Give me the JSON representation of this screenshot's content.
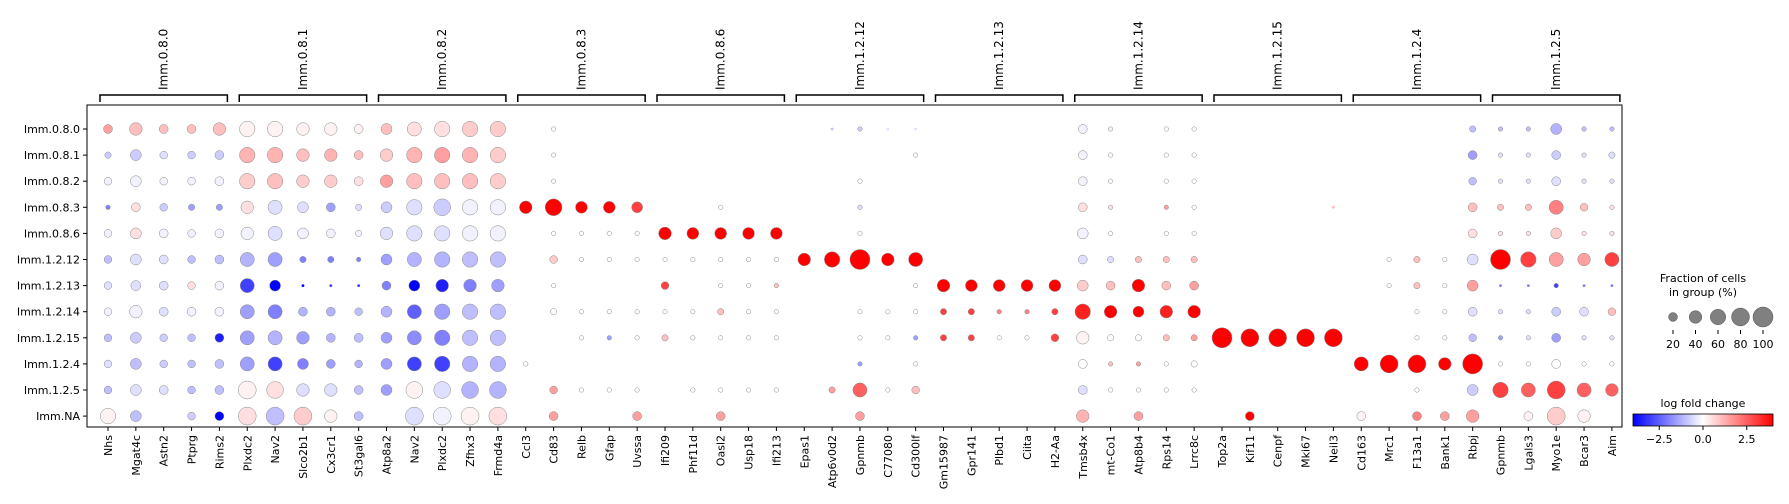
{
  "chart_data": {
    "type": "dotplot",
    "title": "",
    "rows": [
      "Imm.0.8.0",
      "Imm.0.8.1",
      "Imm.0.8.2",
      "Imm.0.8.3",
      "Imm.0.8.6",
      "Imm.1.2.12",
      "Imm.1.2.13",
      "Imm.1.2.14",
      "Imm.1.2.15",
      "Imm.1.2.4",
      "Imm.1.2.5",
      "Imm.NA"
    ],
    "groups": [
      {
        "name": "Imm.0.8.0",
        "genes": [
          "Nhs",
          "Mgat4c",
          "Astn2",
          "Ptprg",
          "Rims2"
        ]
      },
      {
        "name": "Imm.0.8.1",
        "genes": [
          "Plxdc2",
          "Nav2",
          "Slco2b1",
          "Cx3cr1",
          "St3gal6"
        ]
      },
      {
        "name": "Imm.0.8.2",
        "genes": [
          "Atp8a2",
          "Nav2",
          "Plxdc2",
          "Zfhx3",
          "Frmd4a"
        ]
      },
      {
        "name": "Imm.0.8.3",
        "genes": [
          "Ccl3",
          "Cd83",
          "Relb",
          "Gfap",
          "Uvssa"
        ]
      },
      {
        "name": "Imm.0.8.6",
        "genes": [
          "Ifi209",
          "Phf11d",
          "Oasl2",
          "Usp18",
          "Ifi213"
        ]
      },
      {
        "name": "Imm.1.2.12",
        "genes": [
          "Epas1",
          "Atp6v0d2",
          "Gpnmb",
          "C77080",
          "Cd300lf"
        ]
      },
      {
        "name": "Imm.1.2.13",
        "genes": [
          "Gm15987",
          "Gpr141",
          "Plbd1",
          "Ciita",
          "H2-Aa"
        ]
      },
      {
        "name": "Imm.1.2.14",
        "genes": [
          "Tmsb4x",
          "mt-Co1",
          "Atp8b4",
          "Rps14",
          "Lrrc8c"
        ]
      },
      {
        "name": "Imm.1.2.15",
        "genes": [
          "Top2a",
          "Kif11",
          "Cenpf",
          "Mki67",
          "Neil3"
        ]
      },
      {
        "name": "Imm.1.2.4",
        "genes": [
          "Cd163",
          "Mrc1",
          "F13a1",
          "Bank1",
          "Rbpj"
        ]
      },
      {
        "name": "Imm.1.2.5",
        "genes": [
          "Gpnmb",
          "Lgals3",
          "Myo1e",
          "Bcar3",
          "Aim"
        ]
      }
    ],
    "values_note_fraction_scale": "fraction of cells in group (%) per dot (size); log fold change per dot (color)",
    "fraction": [
      [
        20,
        40,
        20,
        20,
        40,
        60,
        60,
        40,
        40,
        20,
        30,
        50,
        60,
        60,
        60,
        2,
        5,
        2,
        2,
        2,
        2,
        2,
        2,
        2,
        2,
        2,
        2,
        5,
        2,
        2,
        0,
        0,
        0,
        0,
        0,
        20,
        5,
        2,
        5,
        5,
        0,
        0,
        0,
        0,
        0,
        0,
        2,
        0,
        2,
        10,
        5,
        5,
        30,
        5,
        5
      ],
      [
        10,
        30,
        15,
        15,
        20,
        60,
        60,
        40,
        40,
        20,
        40,
        60,
        60,
        60,
        60,
        2,
        5,
        2,
        2,
        2,
        2,
        2,
        2,
        2,
        2,
        2,
        2,
        2,
        2,
        5,
        0,
        0,
        0,
        0,
        0,
        20,
        5,
        2,
        5,
        5,
        0,
        0,
        0,
        0,
        0,
        0,
        2,
        2,
        2,
        20,
        5,
        5,
        20,
        5,
        10
      ],
      [
        15,
        30,
        15,
        15,
        20,
        60,
        60,
        40,
        40,
        20,
        40,
        60,
        60,
        60,
        60,
        2,
        5,
        2,
        2,
        2,
        2,
        2,
        2,
        2,
        2,
        2,
        2,
        5,
        2,
        2,
        0,
        0,
        0,
        0,
        0,
        20,
        5,
        2,
        5,
        5,
        0,
        0,
        0,
        0,
        0,
        0,
        2,
        2,
        2,
        15,
        5,
        5,
        20,
        5,
        5
      ],
      [
        5,
        20,
        15,
        10,
        10,
        40,
        50,
        30,
        20,
        10,
        30,
        60,
        70,
        60,
        60,
        40,
        70,
        35,
        35,
        30,
        2,
        2,
        5,
        2,
        2,
        2,
        2,
        5,
        2,
        2,
        2,
        2,
        2,
        2,
        0,
        20,
        5,
        2,
        5,
        5,
        0,
        0,
        0,
        2,
        2,
        0,
        0,
        0,
        0,
        20,
        10,
        10,
        50,
        15,
        5
      ],
      [
        15,
        30,
        20,
        15,
        20,
        40,
        50,
        30,
        20,
        10,
        40,
        60,
        60,
        60,
        60,
        2,
        5,
        5,
        5,
        5,
        40,
        35,
        35,
        35,
        35,
        2,
        2,
        5,
        2,
        2,
        2,
        2,
        0,
        0,
        0,
        30,
        5,
        2,
        5,
        5,
        0,
        0,
        0,
        0,
        0,
        0,
        2,
        2,
        2,
        20,
        5,
        5,
        30,
        5,
        5
      ],
      [
        15,
        30,
        20,
        15,
        20,
        50,
        50,
        10,
        10,
        5,
        30,
        50,
        60,
        60,
        60,
        2,
        15,
        5,
        5,
        5,
        5,
        5,
        5,
        5,
        5,
        40,
        60,
        100,
        40,
        50,
        0,
        0,
        0,
        0,
        0,
        20,
        10,
        10,
        10,
        10,
        0,
        0,
        0,
        0,
        0,
        0,
        5,
        10,
        5,
        30,
        100,
        60,
        50,
        40,
        50
      ],
      [
        15,
        25,
        20,
        15,
        20,
        50,
        30,
        2,
        2,
        2,
        20,
        30,
        40,
        40,
        40,
        2,
        5,
        2,
        2,
        2,
        15,
        2,
        5,
        5,
        5,
        2,
        2,
        2,
        2,
        5,
        40,
        35,
        35,
        35,
        35,
        30,
        20,
        40,
        20,
        20,
        2,
        0,
        0,
        0,
        0,
        0,
        5,
        10,
        5,
        30,
        2,
        2,
        5,
        2,
        2
      ],
      [
        15,
        40,
        20,
        20,
        20,
        50,
        50,
        20,
        20,
        15,
        30,
        50,
        60,
        60,
        60,
        2,
        10,
        5,
        5,
        5,
        5,
        5,
        10,
        5,
        5,
        2,
        2,
        5,
        5,
        5,
        10,
        10,
        5,
        5,
        10,
        60,
        40,
        30,
        40,
        40,
        0,
        0,
        0,
        0,
        0,
        0,
        2,
        5,
        5,
        20,
        5,
        5,
        20,
        20,
        15
      ],
      [
        15,
        30,
        15,
        15,
        20,
        50,
        50,
        40,
        20,
        20,
        30,
        50,
        60,
        60,
        60,
        0,
        0,
        5,
        5,
        5,
        10,
        5,
        5,
        5,
        5,
        2,
        2,
        5,
        5,
        5,
        10,
        10,
        5,
        5,
        15,
        40,
        10,
        10,
        10,
        10,
        100,
        80,
        80,
        80,
        80,
        0,
        2,
        5,
        5,
        15,
        5,
        5,
        20,
        5,
        5
      ],
      [
        15,
        30,
        15,
        15,
        20,
        50,
        50,
        30,
        20,
        15,
        30,
        50,
        60,
        60,
        60,
        5,
        2,
        2,
        2,
        2,
        2,
        2,
        2,
        2,
        2,
        2,
        2,
        5,
        2,
        5,
        0,
        0,
        0,
        0,
        0,
        20,
        5,
        5,
        5,
        10,
        0,
        0,
        0,
        2,
        0,
        50,
        80,
        80,
        40,
        100,
        5,
        5,
        20,
        5,
        5
      ],
      [
        15,
        30,
        20,
        15,
        20,
        80,
        70,
        40,
        40,
        20,
        30,
        70,
        70,
        70,
        70,
        2,
        15,
        5,
        5,
        5,
        2,
        5,
        5,
        5,
        5,
        2,
        10,
        50,
        5,
        15,
        2,
        2,
        2,
        0,
        0,
        20,
        5,
        5,
        5,
        5,
        0,
        0,
        0,
        0,
        0,
        0,
        2,
        5,
        2,
        30,
        60,
        50,
        80,
        50,
        40
      ],
      [
        60,
        30,
        0,
        15,
        20,
        80,
        80,
        80,
        40,
        20,
        0,
        80,
        80,
        80,
        80,
        0,
        20,
        0,
        0,
        20,
        0,
        0,
        20,
        0,
        0,
        0,
        0,
        20,
        0,
        0,
        0,
        0,
        0,
        0,
        0,
        40,
        0,
        20,
        0,
        0,
        0,
        20,
        0,
        0,
        0,
        20,
        0,
        20,
        20,
        40,
        0,
        20,
        80,
        40,
        0
      ]
    ],
    "logfc": [
      [
        1.5,
        1.0,
        1.0,
        1.0,
        1.0,
        0.2,
        0.2,
        0.2,
        0.2,
        0.2,
        1.0,
        0.5,
        0.5,
        0.8,
        0.8,
        0,
        0,
        0,
        0,
        0,
        0,
        0,
        0,
        0,
        0,
        0,
        -1.0,
        -0.8,
        -0.5,
        -0.5,
        0,
        0,
        0,
        0,
        0,
        -0.2,
        -0.2,
        0,
        0,
        0,
        0,
        0,
        0,
        0,
        0,
        0,
        0,
        0,
        0,
        -1.0,
        -1.0,
        -1.0,
        -1.2,
        -1.0,
        -1.0
      ],
      [
        -0.8,
        -0.8,
        -0.5,
        -0.8,
        -0.8,
        1.2,
        1.2,
        1.0,
        1.2,
        1.0,
        0.8,
        1.2,
        1.5,
        1.2,
        0.8,
        0,
        0,
        0,
        0,
        0,
        0,
        0,
        0,
        0,
        0,
        0,
        0,
        0,
        0,
        0,
        0,
        0,
        0,
        0,
        0,
        -0.2,
        0,
        0,
        0,
        0,
        0,
        0,
        0,
        0,
        0,
        0,
        0,
        0,
        0,
        -1.5,
        -0.5,
        -0.5,
        -0.8,
        -0.5,
        -0.5
      ],
      [
        -0.2,
        -0.2,
        -0.2,
        -0.2,
        -0.2,
        0.8,
        1.0,
        0.8,
        0.8,
        0.5,
        1.5,
        1.0,
        1.0,
        1.0,
        0.8,
        0,
        0,
        0,
        0,
        0,
        0,
        0,
        0,
        0,
        0,
        0,
        0,
        0,
        0,
        0,
        0,
        0,
        0,
        0,
        0,
        -0.2,
        0,
        0,
        0,
        0,
        0,
        0,
        0,
        0,
        0,
        0,
        0,
        0,
        0,
        -1.0,
        -0.5,
        -0.5,
        -0.5,
        -0.5,
        -0.5
      ],
      [
        -2.0,
        0.5,
        -0.8,
        -1.5,
        -1.5,
        0.5,
        -0.5,
        -0.5,
        -1.5,
        -0.5,
        -0.8,
        -0.5,
        -0.8,
        -0.2,
        -0.2,
        5,
        5,
        4,
        4,
        3,
        0,
        0,
        0,
        0,
        0,
        0,
        0,
        -0.5,
        0,
        0,
        0,
        0,
        0,
        0,
        0,
        0.5,
        0.5,
        0,
        1.5,
        0,
        0,
        0,
        0,
        0,
        1,
        0,
        0,
        0,
        0,
        1.0,
        1.0,
        1.0,
        2.0,
        1.0,
        0.5
      ],
      [
        -0.2,
        0.5,
        -0.2,
        -0.2,
        -0.2,
        -0.2,
        -0.5,
        -0.2,
        -0.2,
        -0.2,
        -0.5,
        -0.5,
        -0.5,
        -0.2,
        -0.2,
        0,
        0,
        0,
        0,
        0,
        5,
        5,
        5,
        5,
        5,
        0,
        0,
        0,
        0,
        0,
        0,
        0,
        0,
        0,
        0,
        -0.2,
        0,
        0,
        0,
        0,
        0,
        0,
        0,
        0,
        0,
        0,
        0,
        0,
        0,
        0.5,
        0.5,
        0.5,
        0.8,
        0.5,
        0.5
      ],
      [
        -1.0,
        -0.5,
        -0.5,
        -1.0,
        -1.0,
        -1.2,
        -1.5,
        -2.0,
        -2.0,
        -2.0,
        -1.5,
        -1.2,
        -1.2,
        -1.0,
        -1.0,
        0,
        0.8,
        0,
        0,
        0,
        0,
        0,
        0,
        0,
        0,
        5,
        5,
        5,
        5,
        4,
        0,
        0,
        0,
        0,
        0,
        -0.5,
        -0.5,
        1.0,
        1.0,
        1.0,
        0,
        0,
        0,
        0,
        0,
        0,
        0,
        1.0,
        0,
        -0.5,
        5,
        3,
        1.5,
        1.5,
        3
      ],
      [
        -0.5,
        -0.5,
        -0.5,
        0.5,
        -0.2,
        -3.0,
        -4.0,
        -4.0,
        -3.0,
        -3.0,
        -2.0,
        -4.0,
        -3.5,
        -2.0,
        -1.5,
        0,
        0,
        0,
        0,
        0,
        3,
        0,
        0,
        0,
        1,
        0,
        0,
        0,
        0,
        0,
        5,
        5,
        5,
        5,
        5,
        0.8,
        1.0,
        4.0,
        1.0,
        1.5,
        0,
        0,
        0,
        0,
        0,
        0,
        0,
        1.0,
        0,
        1.5,
        -2.0,
        -2.0,
        -3.0,
        -2.0,
        -2.0
      ],
      [
        -0.2,
        -0.2,
        -0.5,
        -0.2,
        -0.2,
        -1.5,
        -2.0,
        -1.2,
        -1.2,
        -1.0,
        -1.2,
        -2.5,
        -1.5,
        -1.0,
        -1.0,
        0,
        0,
        0,
        0,
        0,
        0,
        0,
        1.0,
        0,
        0,
        0,
        0,
        0,
        0,
        0,
        3,
        3,
        2,
        2,
        3,
        3.5,
        4,
        4,
        3.5,
        4,
        0,
        0,
        0,
        0,
        0,
        0,
        0,
        0,
        0,
        -0.5,
        -0.5,
        -0.5,
        -0.8,
        -0.5,
        1.0
      ],
      [
        -1.0,
        -0.8,
        -0.8,
        -1.0,
        -3.5,
        -1.5,
        -1.2,
        -1.5,
        -1.2,
        -1.0,
        -1.5,
        -1.8,
        -2.0,
        -1.0,
        -1.0,
        0,
        0,
        0,
        -1.5,
        0,
        1.0,
        0,
        0,
        0,
        0,
        0,
        0,
        0,
        0,
        -1.5,
        3,
        3,
        0,
        0,
        3,
        0.2,
        0,
        0,
        1.0,
        1.5,
        5,
        5,
        5,
        5,
        5,
        0,
        0,
        0,
        0,
        -1.0,
        -1.5,
        -0.5,
        -1.5,
        -0.5,
        -0.5
      ],
      [
        -0.5,
        -1.0,
        -0.8,
        -1.0,
        -1.0,
        -1.5,
        -3.0,
        -2.0,
        -1.5,
        -1.2,
        -1.5,
        -3.0,
        -3.0,
        -1.2,
        -1.2,
        0,
        0,
        0,
        0,
        0,
        0,
        0,
        0,
        0,
        0,
        0,
        0,
        -1.5,
        0,
        0,
        0,
        0,
        0,
        0,
        0,
        0,
        1.0,
        1.5,
        0,
        0,
        0,
        0,
        0,
        0,
        0,
        5,
        5,
        5,
        5,
        5,
        0,
        0,
        0,
        0,
        0
      ],
      [
        -1.0,
        -0.5,
        -0.5,
        -1.0,
        -1.0,
        0.2,
        0.5,
        -0.5,
        -0.5,
        -1.0,
        -1.5,
        0.2,
        -0.5,
        -1.2,
        -1.2,
        0,
        1.5,
        0,
        0,
        0,
        0,
        0,
        0,
        0,
        0,
        0,
        1.5,
        2.5,
        0,
        1.0,
        0,
        0,
        0,
        0,
        0,
        -0.5,
        0,
        0,
        0,
        0,
        0,
        0,
        0,
        0,
        0,
        0,
        0,
        0,
        0,
        -0.8,
        3,
        2.5,
        3,
        2.5,
        2.5
      ],
      [
        0.2,
        -1.0,
        0,
        -0.8,
        -4.0,
        0.5,
        -1.0,
        0.8,
        0.2,
        -1.0,
        0,
        -0.5,
        -0.2,
        0.2,
        0.5,
        0,
        1.5,
        0,
        0,
        1.5,
        0,
        0,
        1.5,
        0,
        0,
        0,
        0,
        1.5,
        0,
        0,
        0,
        0,
        0,
        0,
        0,
        1.2,
        0,
        1.5,
        0,
        0,
        0,
        5,
        0,
        0,
        0,
        0.2,
        0,
        2,
        1.5,
        1.5,
        0,
        0.2,
        0.8,
        0.2,
        0
      ]
    ],
    "legend": {
      "size_title": "Fraction of cells\nin group (%)",
      "size_ticks": [
        20,
        40,
        60,
        80,
        100
      ],
      "color_title": "log fold change",
      "color_ticks": [
        "−2.5",
        "0.0",
        "2.5"
      ],
      "color_range": [
        -4.0,
        4.0
      ],
      "colormap": "bwr"
    }
  }
}
